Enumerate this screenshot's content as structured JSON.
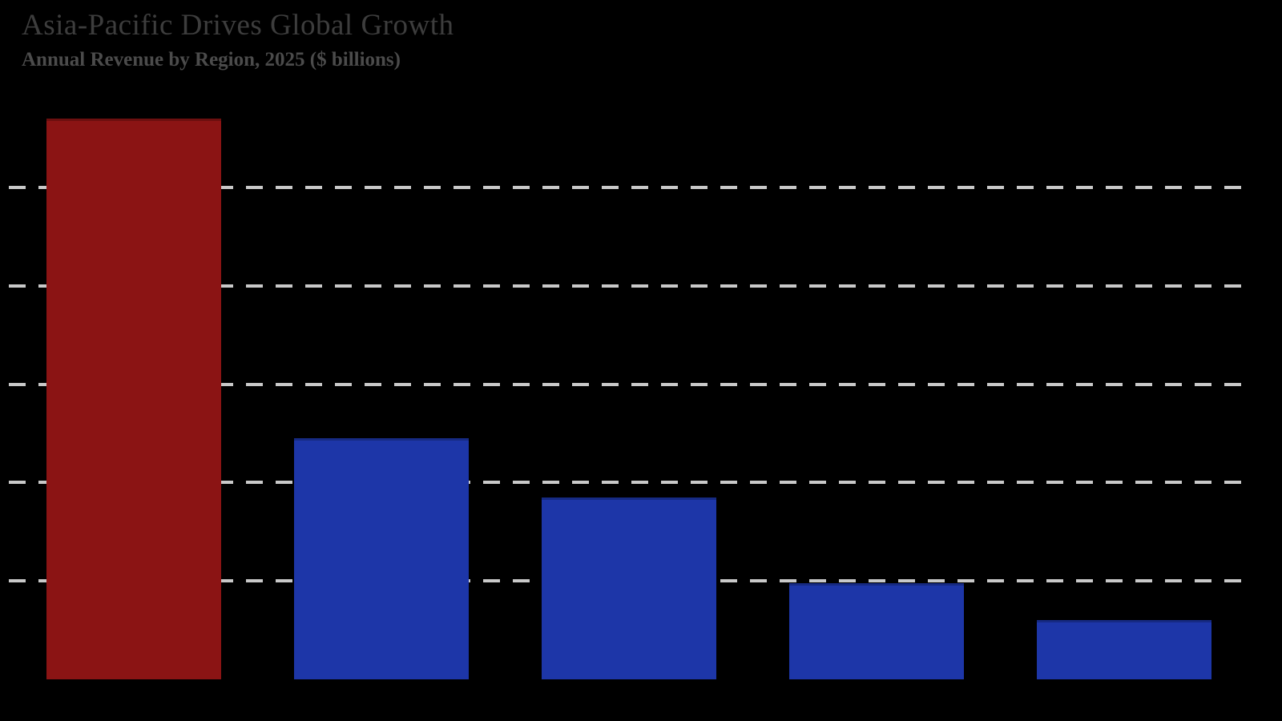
{
  "header": {
    "title": "Asia-Pacific Drives Global Growth",
    "subtitle": "Annual Revenue by Region, 2025 ($ billions)"
  },
  "colors": {
    "background": "#000000",
    "title_text": "#3d3d3d",
    "subtitle_text": "#4b4b4b",
    "gridline": "#c9c9c9",
    "highlight_bar": "#8b1414",
    "default_bar": "#1d36a8"
  },
  "chart_data": {
    "type": "bar",
    "title": "Asia-Pacific Drives Global Growth",
    "subtitle": "Annual Revenue by Region, 2025 ($ billions)",
    "categories": [
      "",
      "",
      "",
      "",
      ""
    ],
    "values": [
      114,
      49,
      37,
      19.5,
      12
    ],
    "bar_colors": [
      "#8b1414",
      "#1d36a8",
      "#1d36a8",
      "#1d36a8",
      "#1d36a8"
    ],
    "xlabel": "",
    "ylabel": "",
    "ylim": [
      0,
      122
    ],
    "gridline_values": [
      20,
      40,
      60,
      80,
      100
    ],
    "grid_style": "dashed",
    "legend_position": "none",
    "tick_labels_visible": false,
    "notes": "Axis tick labels and category labels are not visible in the rendered image; first bar is color-highlighted."
  }
}
